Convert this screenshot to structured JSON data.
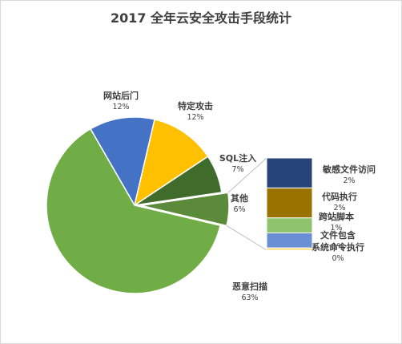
{
  "chart_data": {
    "type": "pie",
    "title": "2017 全年云安全攻击手段统计",
    "slices": [
      {
        "label": "网站后门",
        "pct_label": "12%",
        "value": 12,
        "color": "#4472C4"
      },
      {
        "label": "特定攻击",
        "pct_label": "12%",
        "value": 12,
        "color": "#FFC000"
      },
      {
        "label": "SQL注入",
        "pct_label": "7%",
        "value": 7,
        "color": "#3F6B2B"
      },
      {
        "label": "其他",
        "pct_label": "6%",
        "value": 6,
        "color": "#5A8A3A",
        "exploded": true
      },
      {
        "label": "恶意扫描",
        "pct_label": "63%",
        "value": 63,
        "color": "#70AD47"
      }
    ],
    "breakdown": {
      "of": "其他",
      "type": "bar-of-pie",
      "items": [
        {
          "label": "敏感文件访问",
          "pct_label": "2%",
          "value": 2,
          "color": "#264478"
        },
        {
          "label": "代码执行",
          "pct_label": "2%",
          "value": 2,
          "color": "#997300"
        },
        {
          "label": "跨站脚本",
          "pct_label": "1%",
          "value": 1,
          "color": "#8FC46F"
        },
        {
          "label": "文件包含",
          "pct_label": "1%",
          "value": 1,
          "color": "#6B8FD4"
        },
        {
          "label": "系统命令执行",
          "pct_label": "0%",
          "value": 0.15,
          "color": "#FFD966"
        }
      ]
    }
  }
}
